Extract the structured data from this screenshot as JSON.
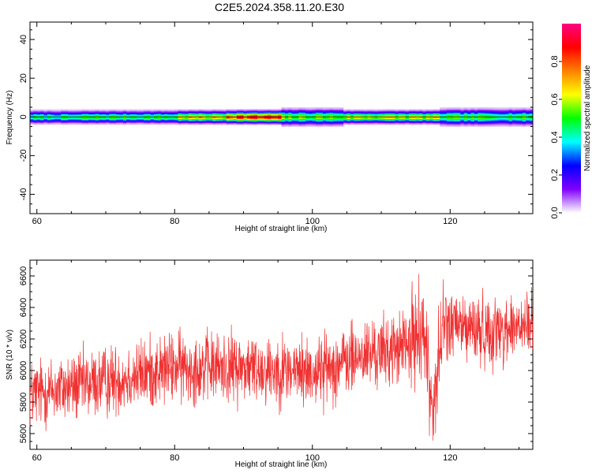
{
  "page_title": "C2E5.2024.358.11.20.E30",
  "chart_data": [
    {
      "type": "heatmap",
      "title": "C2E5.2024.358.11.20.E30",
      "xlabel": "Height of straight line (km)",
      "ylabel": "Frequency (Hz)",
      "xlim": [
        59,
        132
      ],
      "ylim": [
        -50,
        49
      ],
      "x_ticks": [
        60,
        80,
        100,
        120
      ],
      "y_ticks": [
        40,
        20,
        0,
        -20,
        -40
      ],
      "grid": false,
      "colorbar": {
        "label": "Normalized spectral amplitude",
        "range": [
          0,
          1
        ],
        "ticks": [
          0.0,
          0.2,
          0.4,
          0.6,
          0.8
        ],
        "colors": [
          "#ffffff",
          "#8000ff",
          "#0000ff",
          "#00ffff",
          "#00ff00",
          "#ffff00",
          "#ff8000",
          "#ff0000",
          "#ff0080"
        ]
      },
      "band_segments": [
        {
          "x": [
            59,
            66
          ],
          "half_width_hz": 4,
          "peak_amplitude": 0.45
        },
        {
          "x": [
            66,
            80
          ],
          "half_width_hz": 4,
          "peak_amplitude": 0.5
        },
        {
          "x": [
            80,
            87
          ],
          "half_width_hz": 4,
          "peak_amplitude": 0.65
        },
        {
          "x": [
            87,
            95
          ],
          "half_width_hz": 4,
          "peak_amplitude": 0.85
        },
        {
          "x": [
            95,
            104
          ],
          "half_width_hz": 5,
          "peak_amplitude": 0.55
        },
        {
          "x": [
            104,
            118
          ],
          "half_width_hz": 4,
          "peak_amplitude": 0.62
        },
        {
          "x": [
            118,
            132
          ],
          "half_width_hz": 5,
          "peak_amplitude": 0.5
        }
      ]
    },
    {
      "type": "line",
      "xlabel": "Height of straight line (km)",
      "ylabel": "SNR (10 * v/v)",
      "xlim": [
        59,
        132
      ],
      "ylim": [
        5500,
        6700
      ],
      "x_ticks": [
        60,
        80,
        100,
        120
      ],
      "y_ticks": [
        5600,
        5800,
        6000,
        6200,
        6400,
        6600
      ],
      "grid": false,
      "series": [
        {
          "color": "#f03030",
          "trend": {
            "x": [
              59,
              70,
              80,
              90,
              100,
              108,
              114,
              116,
              117.5,
              119,
              125,
              132
            ],
            "y": [
              5850,
              5930,
              6020,
              6020,
              5990,
              6100,
              6150,
              6300,
              5750,
              6300,
              6250,
              6280
            ]
          },
          "noise_amplitude": 170
        }
      ]
    }
  ]
}
